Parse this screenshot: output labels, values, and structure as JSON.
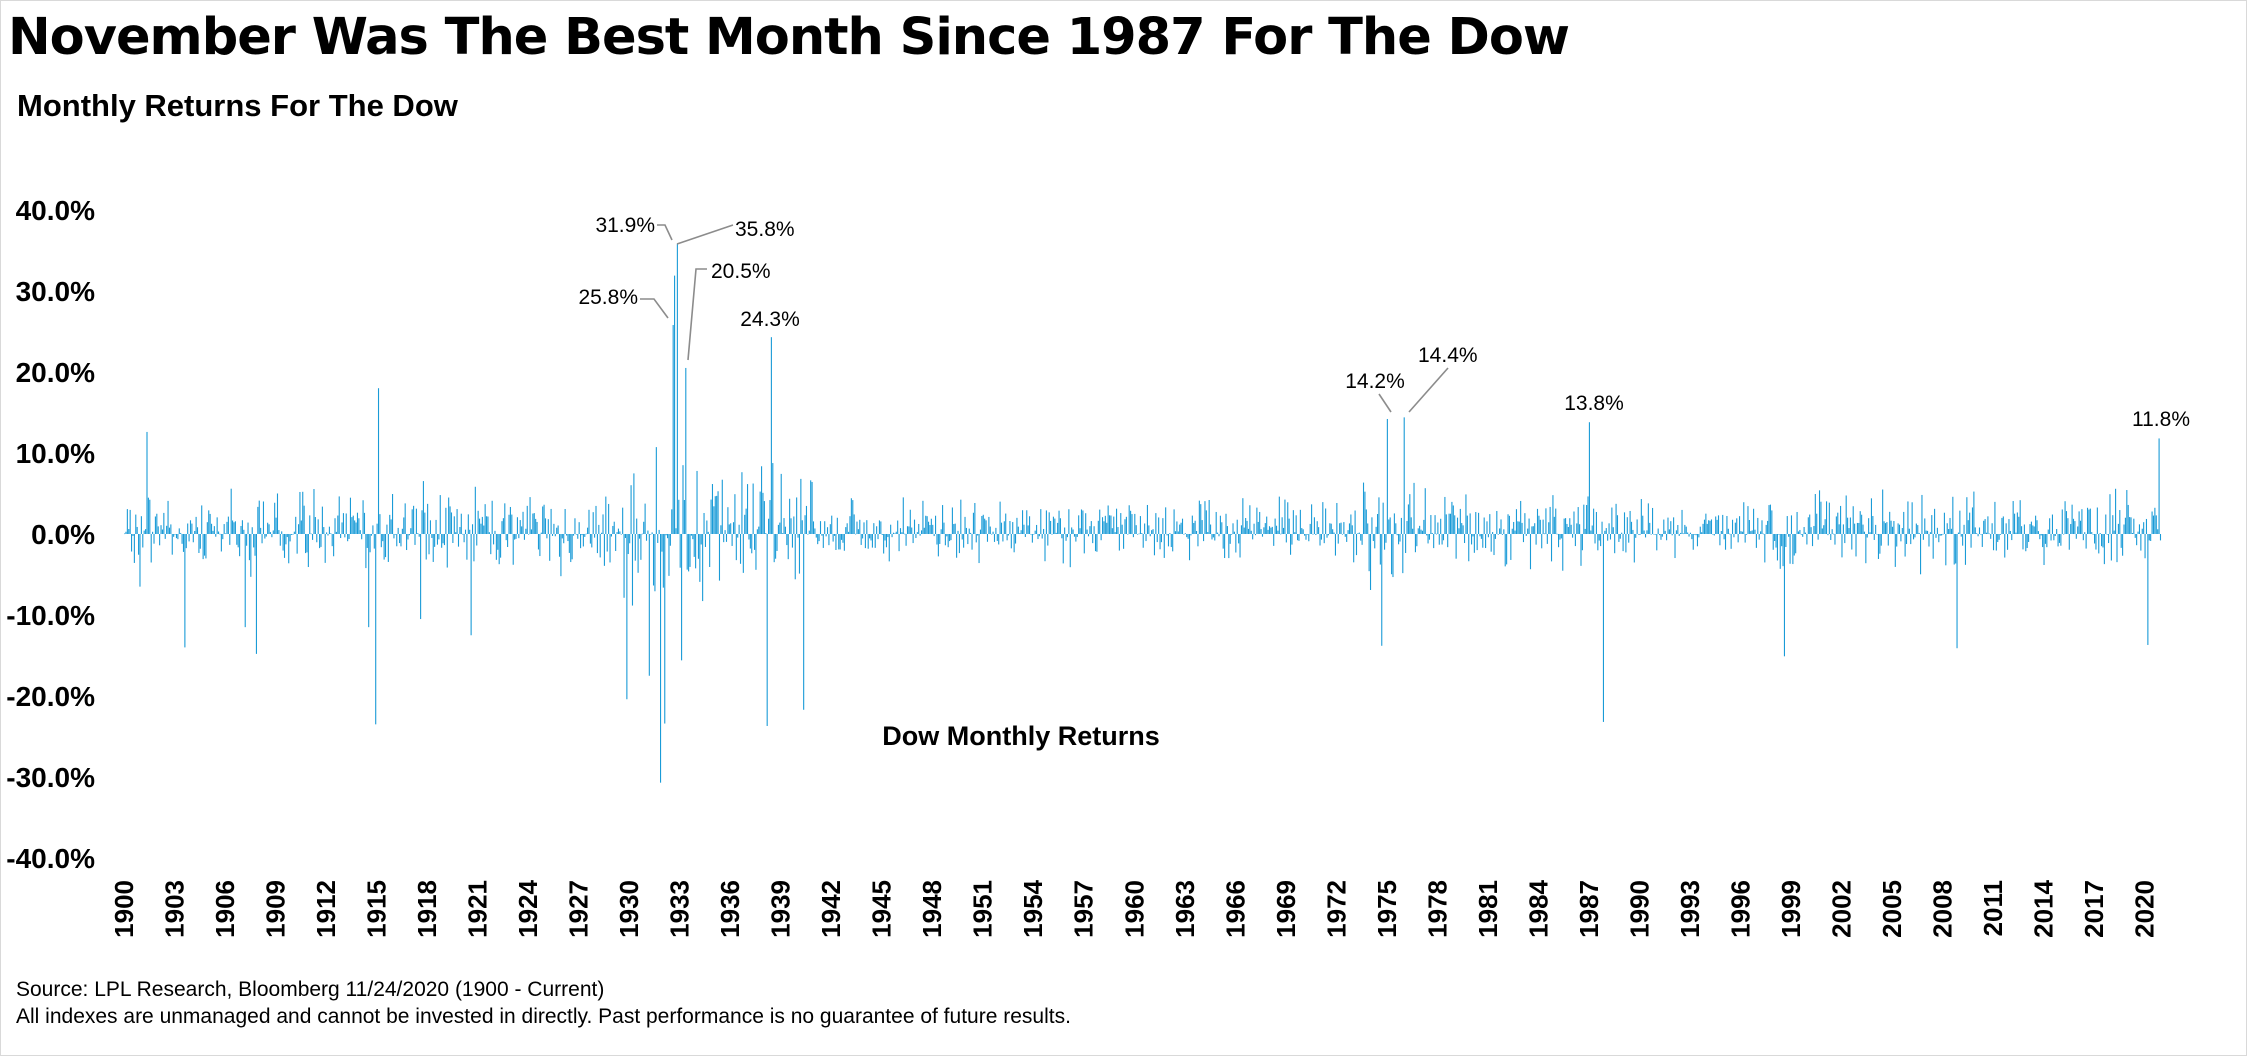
{
  "header": {
    "title": "November Was The Best Month Since 1987 For The Dow",
    "subtitle": "Monthly Returns For The Dow"
  },
  "footer": {
    "source": "Source: LPL Research, Bloomberg  11/24/2020 (1900 - Current)",
    "disclaimer": "All indexes are unmanaged and cannot be invested in directly. Past performance is no guarantee of future results."
  },
  "colors": {
    "bar": "#1a9bd7",
    "leader": "#8c8c8c",
    "frame": "#d9d9d9"
  },
  "chart_data": {
    "type": "bar",
    "title": "Dow Monthly Returns",
    "xlabel": "",
    "ylabel": "",
    "ylim": [
      -40,
      40
    ],
    "yticks": [
      40,
      30,
      20,
      10,
      0,
      -10,
      -20,
      -30,
      -40
    ],
    "ytick_labels": [
      "40.0%",
      "30.0%",
      "20.0%",
      "10.0%",
      "0.0%",
      "-10.0%",
      "-20.0%",
      "-30.0%",
      "-40.0%"
    ],
    "xrange": [
      1900,
      2020.92
    ],
    "xtick_labels": [
      "1900",
      "1903",
      "1906",
      "1909",
      "1912",
      "1915",
      "1918",
      "1921",
      "1924",
      "1927",
      "1930",
      "1933",
      "1936",
      "1939",
      "1942",
      "1945",
      "1948",
      "1951",
      "1954",
      "1957",
      "1960",
      "1963",
      "1966",
      "1969",
      "1972",
      "1975",
      "1978",
      "1981",
      "1984",
      "1987",
      "1990",
      "1993",
      "1996",
      "1999",
      "2002",
      "2005",
      "2008",
      "2011",
      "2014",
      "2017",
      "2020"
    ],
    "notable_months": [
      {
        "year": 1900.9,
        "value": -6.5
      },
      {
        "year": 1901.3,
        "value": 12.6
      },
      {
        "year": 1903.6,
        "value": -14.0
      },
      {
        "year": 1907.2,
        "value": -11.5
      },
      {
        "year": 1907.8,
        "value": -14.8
      },
      {
        "year": 1914.5,
        "value": -11.5
      },
      {
        "year": 1914.9,
        "value": -23.5
      },
      {
        "year": 1915.1,
        "value": 18.0
      },
      {
        "year": 1917.6,
        "value": -10.5
      },
      {
        "year": 1920.6,
        "value": -12.5
      },
      {
        "year": 1929.8,
        "value": -20.4
      },
      {
        "year": 1931.2,
        "value": -17.5
      },
      {
        "year": 1931.8,
        "value": -30.7
      },
      {
        "year": 1932.1,
        "value": -23.4
      },
      {
        "year": 1932.6,
        "value": -16.0
      },
      {
        "year": 1933.1,
        "value": -15.6
      },
      {
        "year": 1938.2,
        "value": -23.7
      },
      {
        "year": 1940.3,
        "value": -21.7
      },
      {
        "year": 1974.7,
        "value": -13.8
      },
      {
        "year": 1987.8,
        "value": -23.2
      },
      {
        "year": 1998.6,
        "value": -15.1
      },
      {
        "year": 2008.8,
        "value": -14.1
      },
      {
        "year": 2020.2,
        "value": -13.7
      }
    ],
    "labeled_points": [
      {
        "year": 1932.6,
        "value": 25.8,
        "label": "25.8%"
      },
      {
        "year": 1932.7,
        "value": 31.9,
        "label": "31.9%"
      },
      {
        "year": 1932.8,
        "value": 35.8,
        "label": "35.8%"
      },
      {
        "year": 1933.3,
        "value": 20.5,
        "label": "20.5%"
      },
      {
        "year": 1938.4,
        "value": 24.3,
        "label": "24.3%"
      },
      {
        "year": 1975.0,
        "value": 14.2,
        "label": "14.2%"
      },
      {
        "year": 1976.0,
        "value": 14.4,
        "label": "14.4%"
      },
      {
        "year": 1987.0,
        "value": 13.8,
        "label": "13.8%"
      },
      {
        "year": 2020.84,
        "value": 11.8,
        "label": "11.8%"
      }
    ]
  }
}
